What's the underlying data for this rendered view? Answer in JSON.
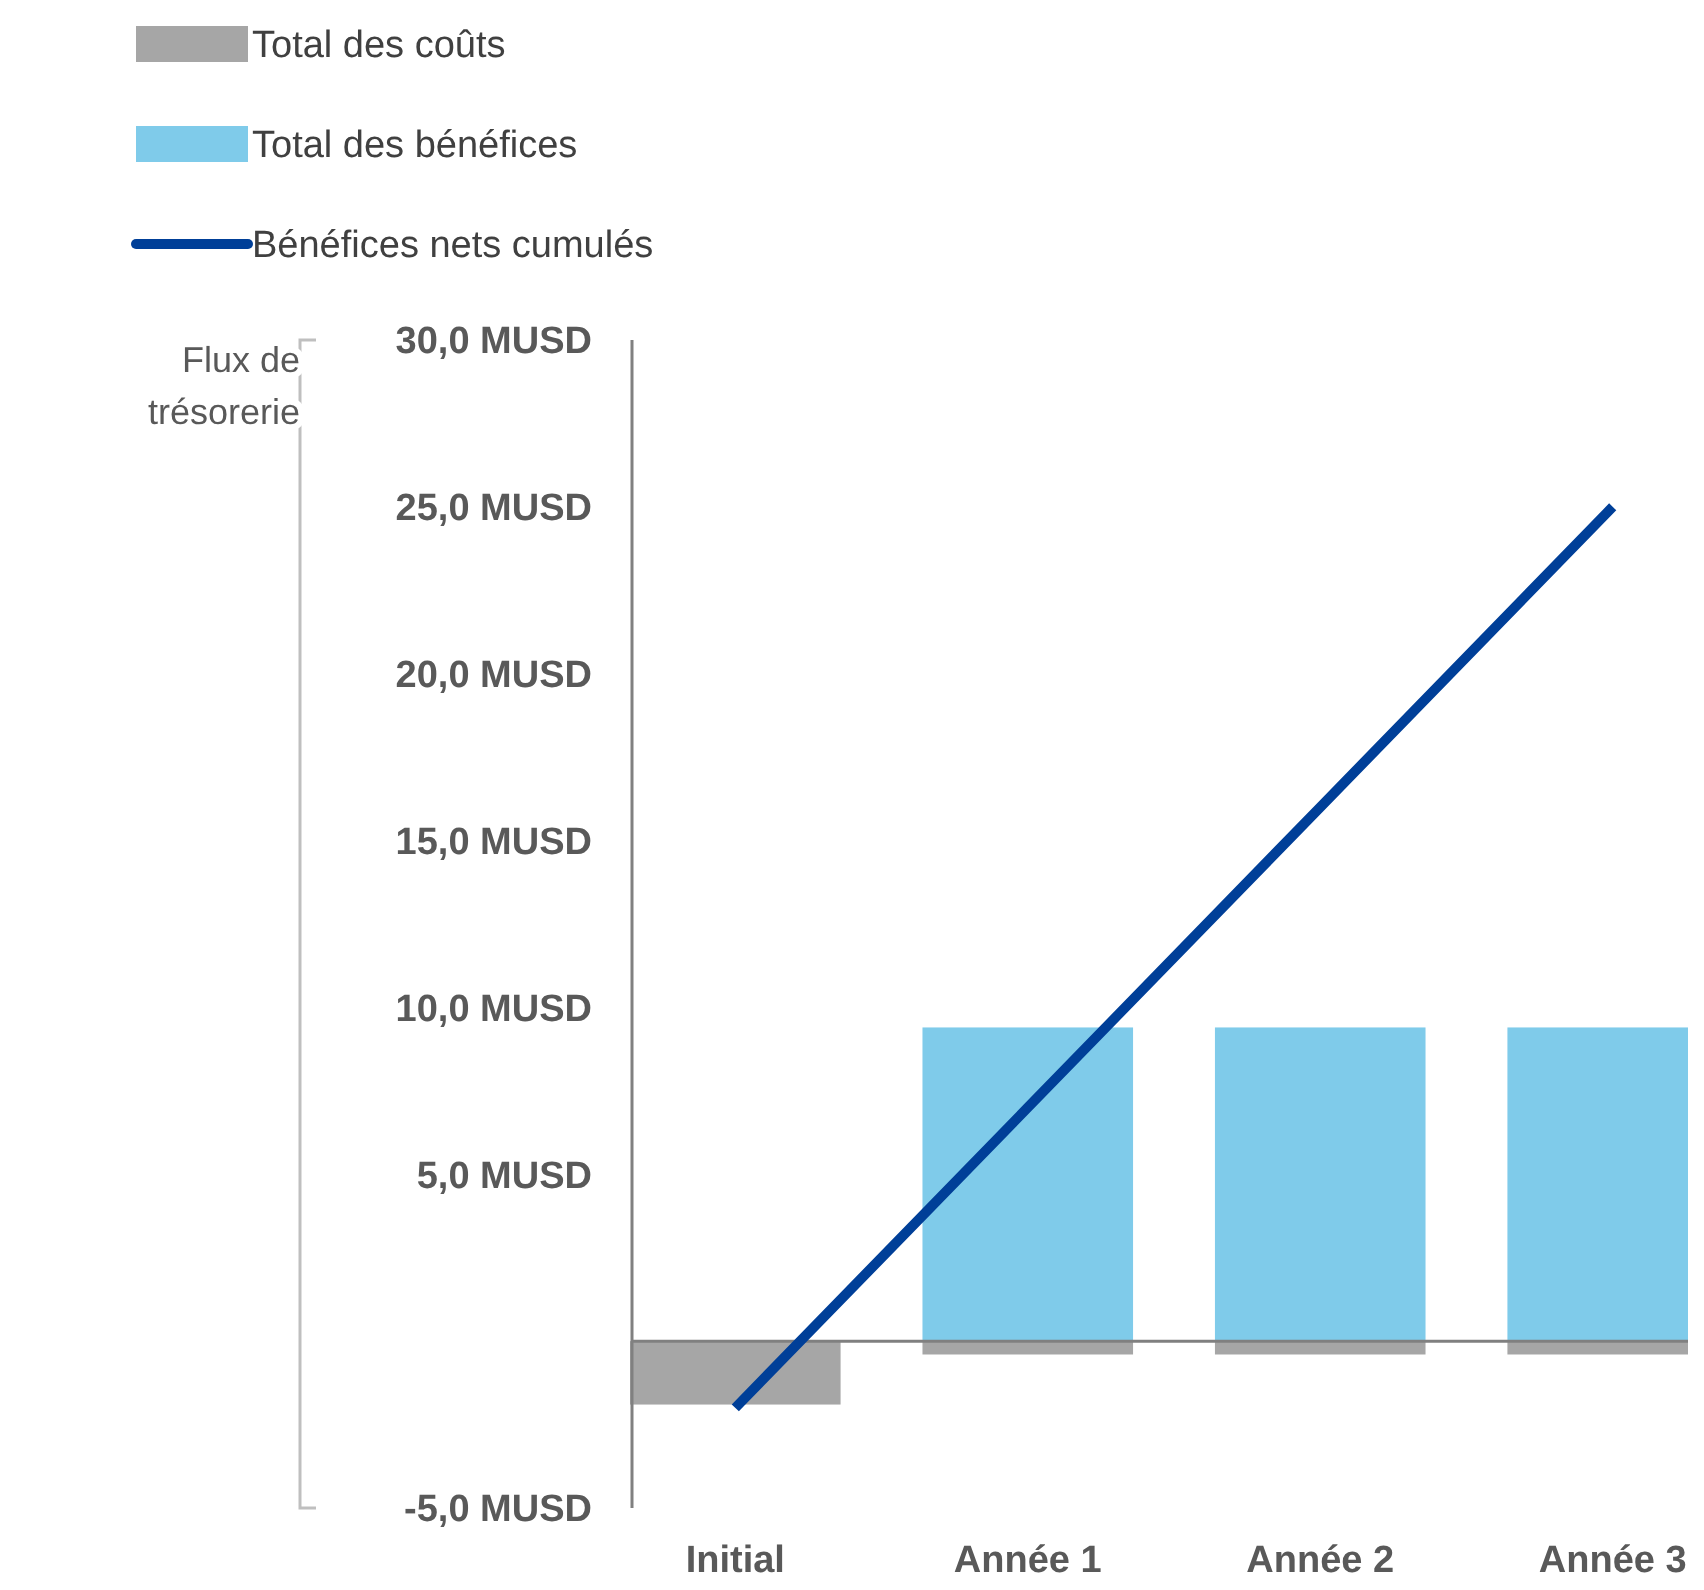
{
  "chart_data": {
    "type": "bar",
    "stacked": true,
    "ylabel": "Flux de trésorerie",
    "categories": [
      "Initial",
      "Année 1",
      "Année 2",
      "Année 3"
    ],
    "series": [
      {
        "name": "Total des coûts",
        "color": "#a6a6a6",
        "values": [
          -1.9,
          -0.4,
          -0.4,
          -0.4
        ]
      },
      {
        "name": "Total des bénéfices",
        "color": "#7fcbea",
        "values": [
          0,
          9.4,
          9.4,
          9.4
        ]
      },
      {
        "name": "Bénéfices nets cumulés",
        "type": "line",
        "color": "#003f98",
        "values": [
          -2,
          7,
          16,
          25
        ]
      }
    ],
    "ylim": [
      -5,
      30
    ],
    "yticks": [
      {
        "value": -5,
        "label": "-5,0 MUSD"
      },
      {
        "value": 5,
        "label": "5,0 MUSD"
      },
      {
        "value": 10,
        "label": "10,0 MUSD"
      },
      {
        "value": 15,
        "label": "15,0 MUSD"
      },
      {
        "value": 20,
        "label": "20,0 MUSD"
      },
      {
        "value": 25,
        "label": "25,0 MUSD"
      },
      {
        "value": 30,
        "label": "30,0 MUSD"
      }
    ],
    "grid": false,
    "legend": "top left"
  }
}
